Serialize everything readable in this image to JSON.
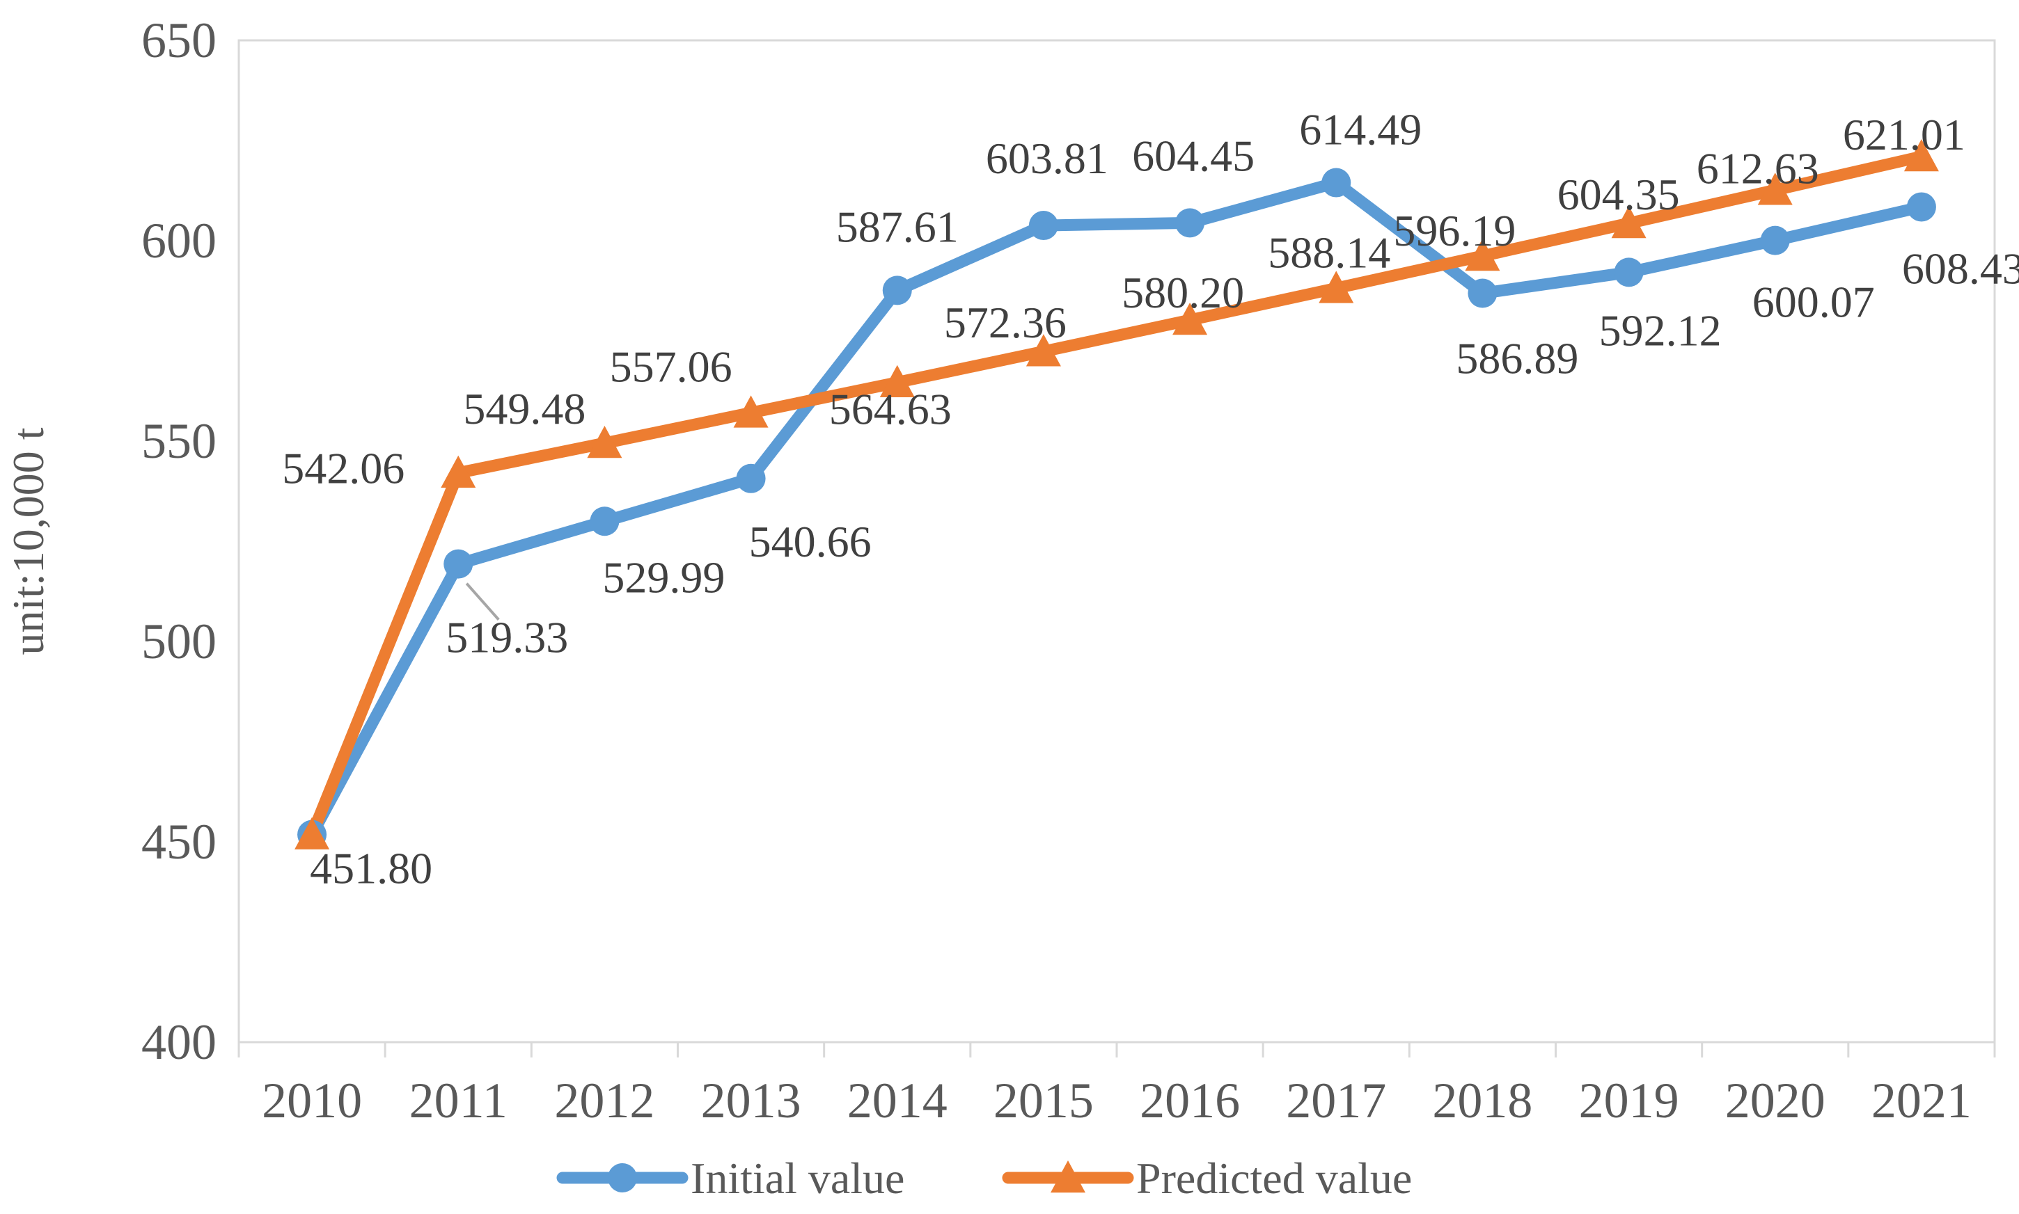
{
  "colors": {
    "initial": "#5B9BD5",
    "predicted": "#ED7D31",
    "axis": "#D9D9D9",
    "text": "#595959",
    "label_text": "#404040",
    "leader": "#A6A6A6"
  },
  "chart_data": {
    "type": "line",
    "title": "",
    "xlabel": "",
    "ylabel": "unit:10,000 t",
    "ylim": [
      400,
      650
    ],
    "yticks": [
      400,
      450,
      500,
      550,
      600,
      650
    ],
    "grid": false,
    "legend_position": "bottom",
    "categories": [
      "2010",
      "2011",
      "2012",
      "2013",
      "2014",
      "2015",
      "2016",
      "2017",
      "2018",
      "2019",
      "2020",
      "2021"
    ],
    "series": [
      {
        "name": "Initial value",
        "marker": "circle",
        "values": [
          451.8,
          519.33,
          529.99,
          540.66,
          587.61,
          603.81,
          604.45,
          614.49,
          586.89,
          592.12,
          600.07,
          608.43
        ],
        "labels": [
          "451.80",
          "519.33",
          "529.99",
          "540.66",
          "587.61",
          "603.81",
          "604.45",
          "614.49",
          "586.89",
          "592.12",
          "600.07",
          "608.43"
        ]
      },
      {
        "name": "Predicted value",
        "marker": "triangle",
        "values": [
          451.8,
          542.06,
          549.48,
          557.06,
          564.63,
          572.36,
          580.2,
          588.14,
          596.19,
          604.35,
          612.63,
          621.01
        ],
        "labels": [
          "",
          "542.06",
          "549.48",
          "557.06",
          "564.63",
          "572.36",
          "580.20",
          "588.14",
          "596.19",
          "604.35",
          "612.63",
          "621.01"
        ]
      }
    ]
  }
}
